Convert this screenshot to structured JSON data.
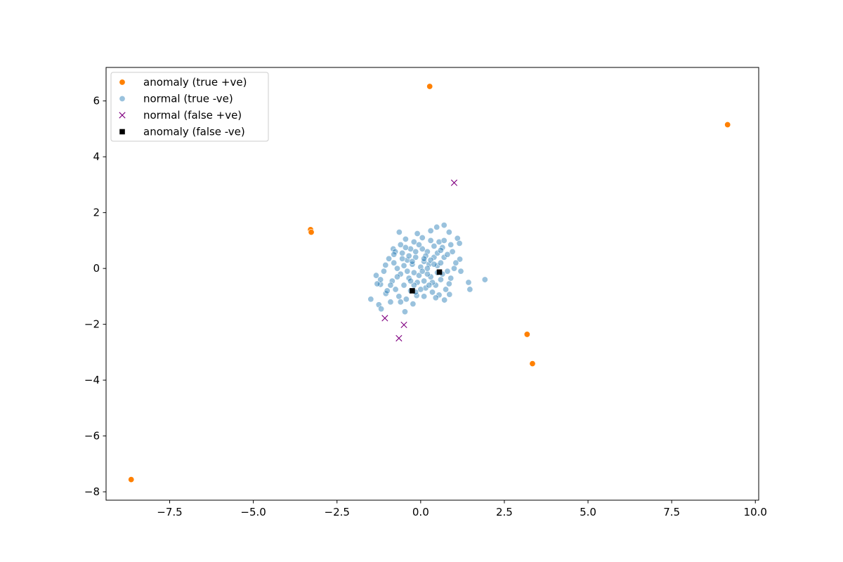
{
  "chart_data": {
    "type": "scatter",
    "title": "",
    "xlabel": "",
    "ylabel": "",
    "xlim": [
      -9.4,
      10.1
    ],
    "ylim": [
      -8.3,
      7.2
    ],
    "x_ticks": [
      -7.5,
      -5.0,
      -2.5,
      0.0,
      2.5,
      5.0,
      7.5,
      10.0
    ],
    "x_tick_labels": [
      "−7.5",
      "−5.0",
      "−2.5",
      "0.0",
      "2.5",
      "5.0",
      "7.5",
      "10.0"
    ],
    "y_ticks": [
      -8,
      -6,
      -4,
      -2,
      0,
      2,
      4,
      6
    ],
    "y_tick_labels": [
      "−8",
      "−6",
      "−4",
      "−2",
      "0",
      "2",
      "4",
      "6"
    ],
    "grid": false,
    "legend_position": "top-left",
    "series": [
      {
        "name": "anomaly (true +ve)",
        "marker": "circle",
        "color": "#ff8000",
        "points": [
          [
            0.27,
            6.52
          ],
          [
            9.17,
            5.15
          ],
          [
            -3.29,
            1.39
          ],
          [
            -3.27,
            1.3
          ],
          [
            3.18,
            -2.36
          ],
          [
            3.34,
            -3.41
          ],
          [
            -8.65,
            -7.56
          ]
        ]
      },
      {
        "name": "normal (true -ve)",
        "marker": "circle",
        "color": "#1f77b4",
        "alpha": 0.45,
        "points": [
          [
            1.92,
            -0.4
          ],
          [
            1.43,
            -0.5
          ],
          [
            1.47,
            -0.75
          ],
          [
            -1.49,
            -1.1
          ],
          [
            -1.25,
            -1.3
          ],
          [
            -1.18,
            -1.45
          ],
          [
            -0.47,
            -1.55
          ],
          [
            0.7,
            1.55
          ],
          [
            0.48,
            1.48
          ],
          [
            0.85,
            1.3
          ],
          [
            -0.64,
            1.3
          ],
          [
            0.3,
            1.35
          ],
          [
            -0.82,
            0.7
          ],
          [
            -0.76,
            0.6
          ],
          [
            1.1,
            1.08
          ],
          [
            1.16,
            0.9
          ],
          [
            -1.2,
            -0.57
          ],
          [
            -1.33,
            -0.25
          ],
          [
            -1.05,
            0.12
          ],
          [
            1.17,
            0.33
          ],
          [
            -0.9,
            -1.2
          ],
          [
            -0.23,
            -1.27
          ],
          [
            0.71,
            -1.13
          ],
          [
            0.86,
            -0.93
          ],
          [
            -0.43,
            -1.1
          ],
          [
            -1.04,
            -0.9
          ],
          [
            -0.12,
            -0.97
          ],
          [
            0.0,
            0.05
          ],
          [
            0.1,
            0.25
          ],
          [
            -0.2,
            -0.15
          ],
          [
            0.3,
            -0.3
          ],
          [
            0.5,
            0.1
          ],
          [
            -0.4,
            0.3
          ],
          [
            0.2,
            0.6
          ],
          [
            -0.1,
            -0.5
          ],
          [
            0.6,
            -0.4
          ],
          [
            -0.6,
            -0.2
          ],
          [
            0.4,
            0.8
          ],
          [
            -0.3,
            0.7
          ],
          [
            0.7,
            0.4
          ],
          [
            -0.7,
            0.0
          ],
          [
            0.15,
            -0.7
          ],
          [
            -0.5,
            -0.6
          ],
          [
            0.8,
            -0.1
          ],
          [
            -0.2,
            0.95
          ],
          [
            0.35,
            -0.85
          ],
          [
            -0.85,
            -0.45
          ],
          [
            0.95,
            0.6
          ],
          [
            -0.55,
            0.55
          ],
          [
            0.05,
            1.1
          ],
          [
            0.25,
            0.15
          ],
          [
            -0.15,
            0.4
          ],
          [
            0.45,
            -0.6
          ],
          [
            -0.35,
            -0.35
          ],
          [
            0.65,
            0.75
          ],
          [
            -0.75,
            -0.75
          ],
          [
            0.55,
            -0.95
          ],
          [
            -0.05,
            -0.25
          ],
          [
            0.1,
            -1.0
          ],
          [
            -0.95,
            0.35
          ],
          [
            1.0,
            0.0
          ],
          [
            -1.1,
            -0.1
          ],
          [
            0.3,
            1.0
          ],
          [
            -0.45,
            1.05
          ],
          [
            0.85,
            -0.55
          ],
          [
            -0.65,
            -1.0
          ],
          [
            0.05,
            0.7
          ],
          [
            -0.25,
            0.15
          ],
          [
            0.4,
            0.4
          ],
          [
            0.6,
            0.2
          ],
          [
            -0.8,
            0.2
          ],
          [
            0.2,
            -0.2
          ],
          [
            -0.6,
            0.85
          ],
          [
            0.9,
            0.85
          ],
          [
            -0.3,
            -0.8
          ],
          [
            0.1,
            -0.45
          ],
          [
            -1.2,
            -0.4
          ],
          [
            0.75,
            -0.75
          ],
          [
            -0.15,
            0.6
          ],
          [
            0.5,
            0.55
          ],
          [
            -0.4,
            -0.1
          ],
          [
            0.3,
            0.3
          ],
          [
            -0.05,
            0.85
          ],
          [
            0.65,
            -0.2
          ],
          [
            -0.7,
            -0.3
          ],
          [
            0.15,
            0.45
          ],
          [
            -0.5,
            0.1
          ],
          [
            0.8,
            0.5
          ],
          [
            -0.9,
            -0.6
          ],
          [
            0.35,
            -0.5
          ],
          [
            -0.2,
            -0.6
          ],
          [
            0.55,
            0.95
          ],
          [
            -0.35,
            0.45
          ],
          [
            1.05,
            0.2
          ],
          [
            0.0,
            -0.75
          ],
          [
            -1.0,
            -0.8
          ],
          [
            0.45,
            -1.05
          ],
          [
            -0.6,
            -1.2
          ],
          [
            0.7,
            1.0
          ],
          [
            -0.1,
            1.25
          ],
          [
            0.2,
            0.0
          ],
          [
            -0.3,
            -0.45
          ],
          [
            0.5,
            -0.15
          ],
          [
            -0.55,
            0.35
          ],
          [
            0.1,
            0.35
          ],
          [
            0.9,
            -0.35
          ],
          [
            -0.8,
            0.5
          ],
          [
            0.4,
            0.15
          ],
          [
            -0.15,
            -0.85
          ],
          [
            0.25,
            -0.6
          ],
          [
            -1.3,
            -0.55
          ],
          [
            1.2,
            -0.1
          ],
          [
            -0.45,
            0.75
          ],
          [
            0.6,
            0.65
          ],
          [
            -0.25,
            0.25
          ],
          [
            0.05,
            -0.1
          ]
        ]
      },
      {
        "name": "normal (false +ve)",
        "marker": "x",
        "color": "#800080",
        "points": [
          [
            1.0,
            3.07
          ],
          [
            -1.07,
            -1.78
          ],
          [
            -0.5,
            -2.02
          ],
          [
            -0.65,
            -2.5
          ]
        ]
      },
      {
        "name": "anomaly (false -ve)",
        "marker": "square",
        "color": "#000000",
        "points": [
          [
            0.56,
            -0.13
          ],
          [
            -0.25,
            -0.8
          ]
        ]
      }
    ]
  }
}
